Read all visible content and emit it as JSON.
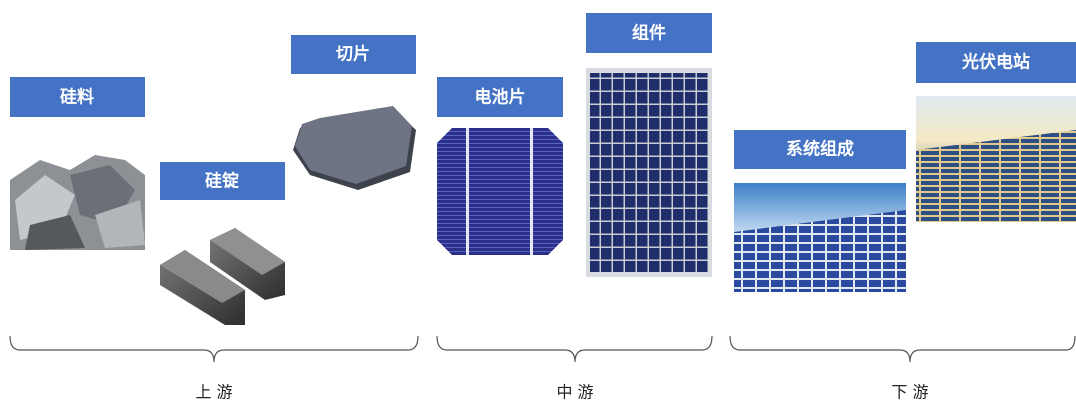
{
  "nodes": [
    {
      "label": "硅料"
    },
    {
      "label": "硅锭"
    },
    {
      "label": "切片"
    },
    {
      "label": "电池片"
    },
    {
      "label": "组件"
    },
    {
      "label": "系统组成"
    },
    {
      "label": "光伏电站"
    }
  ],
  "stages": [
    {
      "label": "上 游"
    },
    {
      "label": "中 游"
    },
    {
      "label": "下 游"
    }
  ]
}
